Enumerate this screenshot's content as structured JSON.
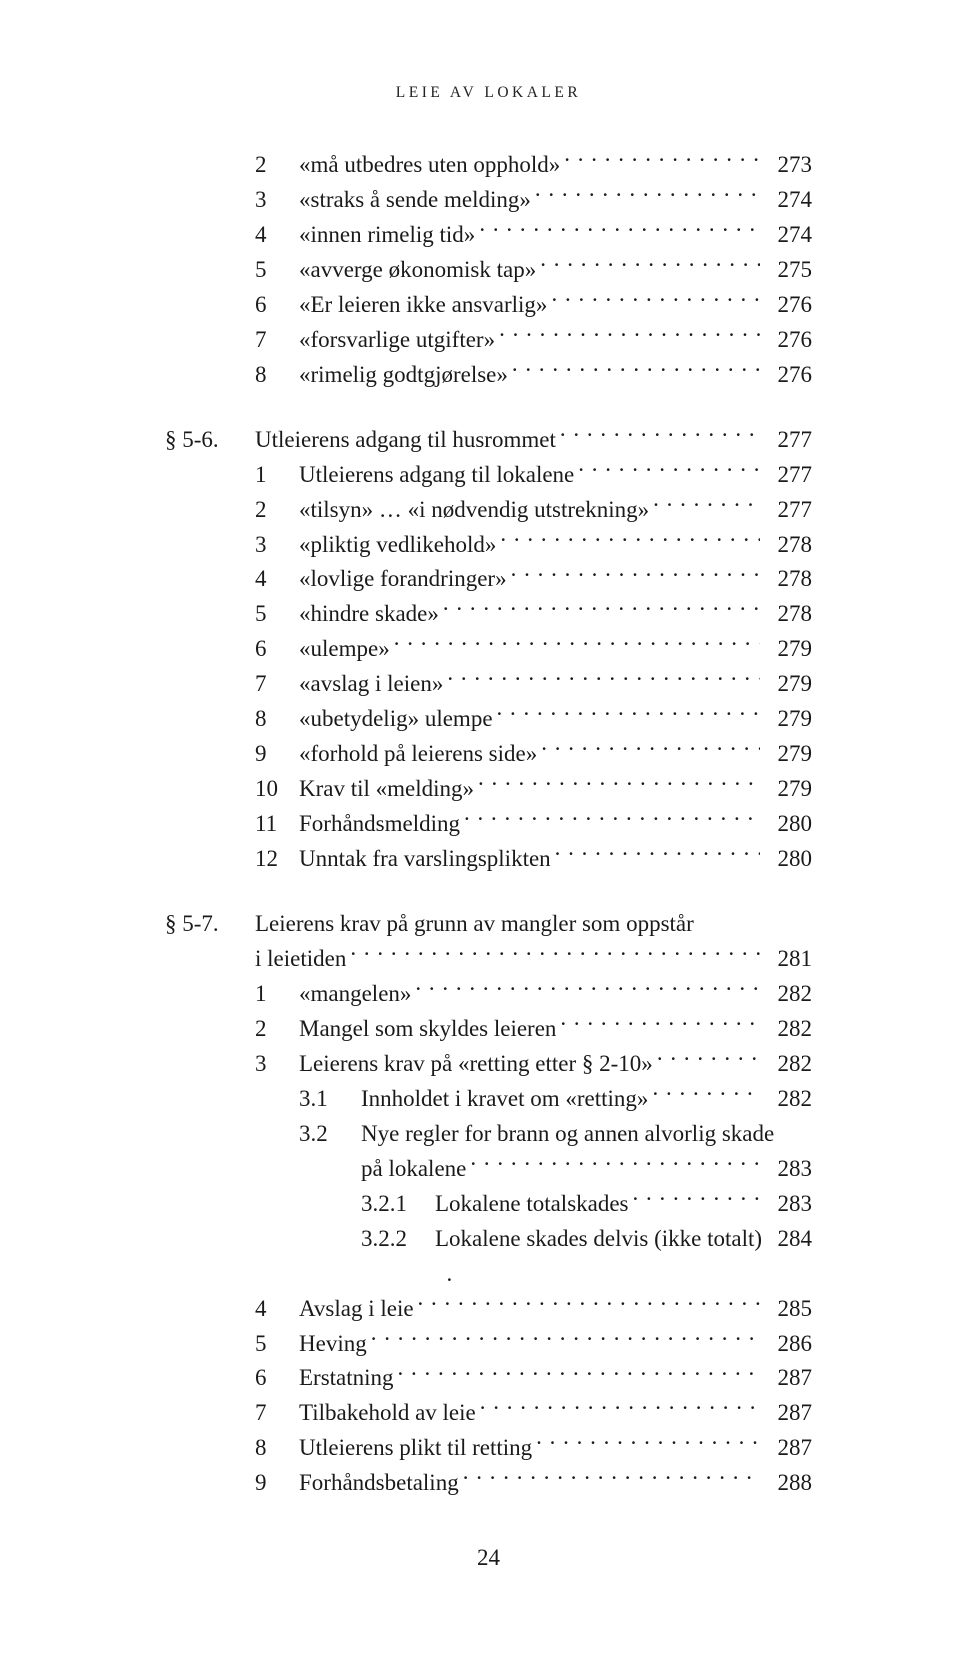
{
  "running_head": "LEIE AV LOKALER",
  "folio": "24",
  "block_a": {
    "items": [
      {
        "n": "2",
        "t": "«må utbedres uten opphold»",
        "p": "273"
      },
      {
        "n": "3",
        "t": "«straks å sende melding»",
        "p": "274"
      },
      {
        "n": "4",
        "t": "«innen rimelig tid»",
        "p": "274"
      },
      {
        "n": "5",
        "t": "«avverge økonomisk tap»",
        "p": "275"
      },
      {
        "n": "6",
        "t": "«Er leieren ikke ansvarlig»",
        "p": "276"
      },
      {
        "n": "7",
        "t": "«forsvarlige utgifter»",
        "p": "276"
      },
      {
        "n": "8",
        "t": "«rimelig godtgjørelse»",
        "p": "276"
      }
    ]
  },
  "sec_5_6": {
    "label": "§ 5-6.",
    "title": "Utleierens adgang til husrommet",
    "page": "277",
    "items": [
      {
        "n": "1",
        "t": "Utleierens adgang til lokalene",
        "p": "277"
      },
      {
        "n": "2",
        "t": "«tilsyn» … «i nødvendig utstrekning»",
        "p": "277"
      },
      {
        "n": "3",
        "t": "«pliktig vedlikehold»",
        "p": "278"
      },
      {
        "n": "4",
        "t": "«lovlige forandringer»",
        "p": "278"
      },
      {
        "n": "5",
        "t": "«hindre skade»",
        "p": "278"
      },
      {
        "n": "6",
        "t": "«ulempe»",
        "p": "279"
      },
      {
        "n": "7",
        "t": "«avslag i leien»",
        "p": "279"
      },
      {
        "n": "8",
        "t": "«ubetydelig» ulempe",
        "p": "279"
      },
      {
        "n": "9",
        "t": "«forhold på leierens side»",
        "p": "279"
      },
      {
        "n": "10",
        "t": "Krav til «melding»",
        "p": "279"
      },
      {
        "n": "11",
        "t": "Forhåndsmelding",
        "p": "280"
      },
      {
        "n": "12",
        "t": "Unntak fra varslingsplikten",
        "p": "280"
      }
    ]
  },
  "sec_5_7": {
    "label": "§ 5-7.",
    "title_l1": "Leierens krav på grunn av mangler som oppstår",
    "title_l2": "i leietiden",
    "page": "281",
    "items_top": [
      {
        "n": "1",
        "t": "«mangelen»",
        "p": "282"
      },
      {
        "n": "2",
        "t": "Mangel som skyldes leieren",
        "p": "282"
      },
      {
        "n": "3",
        "t": "Leierens krav på «retting etter § 2-10»",
        "p": "282"
      }
    ],
    "sub3": [
      {
        "n": "3.1",
        "t": "Innholdet i kravet om «retting»",
        "p": "282"
      }
    ],
    "sub3_2": {
      "n": "3.2",
      "t1": "Nye regler for brann og annen alvorlig skade",
      "t2": "på lokalene",
      "p": "283",
      "children": [
        {
          "n": "3.2.1",
          "t": "Lokalene totalskades",
          "p": "283"
        },
        {
          "n": "3.2.2",
          "t": "Lokalene skades delvis (ikke totalt)",
          "leader_dot": ".",
          "p": "284"
        }
      ]
    },
    "items_bottom": [
      {
        "n": "4",
        "t": "Avslag i leie",
        "p": "285"
      },
      {
        "n": "5",
        "t": "Heving",
        "p": "286"
      },
      {
        "n": "6",
        "t": "Erstatning",
        "p": "287"
      },
      {
        "n": "7",
        "t": "Tilbakehold av leie",
        "p": "287"
      },
      {
        "n": "8",
        "t": "Utleierens plikt til retting",
        "p": "287"
      },
      {
        "n": "9",
        "t": "Forhåndsbetaling",
        "p": "288"
      }
    ]
  }
}
